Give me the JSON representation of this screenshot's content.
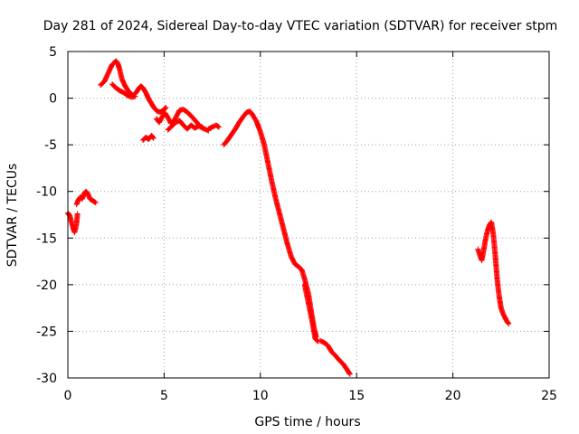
{
  "chart_data": {
    "type": "scatter",
    "title": "Day 281 of 2024, Sidereal Day-to-day VTEC variation (SDTVAR) for receiver stpm",
    "xlabel": "GPS time / hours",
    "ylabel": "SDTVAR / TECUs",
    "xlim": [
      0,
      25
    ],
    "ylim": [
      -30,
      5
    ],
    "xticks": [
      0,
      5,
      10,
      15,
      20,
      25
    ],
    "yticks": [
      5,
      0,
      -5,
      -10,
      -15,
      -20,
      -25,
      -30
    ],
    "grid": true,
    "marker": "+",
    "color": "#ff0000",
    "series": [
      {
        "name": "SDTVAR",
        "segments": [
          [
            [
              0.0,
              -12.3
            ],
            [
              0.1,
              -12.6
            ],
            [
              0.2,
              -13.4
            ],
            [
              0.3,
              -14.1
            ],
            [
              0.35,
              -14.4
            ],
            [
              0.45,
              -13.5
            ],
            [
              0.5,
              -12.4
            ]
          ],
          [
            [
              0.45,
              -11.4
            ],
            [
              0.55,
              -10.9
            ],
            [
              0.65,
              -10.6
            ],
            [
              0.75,
              -10.8
            ],
            [
              0.85,
              -10.2
            ],
            [
              0.95,
              -10.0
            ],
            [
              1.05,
              -10.3
            ],
            [
              1.15,
              -10.8
            ],
            [
              1.3,
              -11.0
            ],
            [
              1.45,
              -11.2
            ]
          ],
          [
            [
              1.7,
              1.4
            ],
            [
              1.9,
              1.8
            ],
            [
              2.1,
              2.7
            ],
            [
              2.3,
              3.6
            ],
            [
              2.5,
              4.0
            ],
            [
              2.6,
              3.7
            ],
            [
              2.7,
              3.0
            ],
            [
              2.8,
              2.1
            ],
            [
              2.95,
              1.4
            ],
            [
              3.1,
              0.9
            ],
            [
              3.25,
              0.5
            ],
            [
              3.4,
              0.3
            ],
            [
              3.55,
              0.6
            ],
            [
              3.7,
              1.1
            ],
            [
              3.8,
              1.3
            ],
            [
              3.9,
              1.1
            ],
            [
              4.05,
              0.6
            ],
            [
              4.2,
              -0.1
            ],
            [
              4.35,
              -0.6
            ],
            [
              4.5,
              -1.1
            ],
            [
              4.65,
              -1.4
            ],
            [
              4.8,
              -1.5
            ],
            [
              4.95,
              -1.3
            ],
            [
              5.1,
              -1.0
            ]
          ],
          [
            [
              2.3,
              1.5
            ],
            [
              2.5,
              1.1
            ],
            [
              2.7,
              0.8
            ],
            [
              2.9,
              0.6
            ],
            [
              3.1,
              0.3
            ],
            [
              3.3,
              0.1
            ],
            [
              3.5,
              0.2
            ]
          ],
          [
            [
              3.9,
              -4.5
            ],
            [
              4.05,
              -4.2
            ],
            [
              4.2,
              -4.4
            ],
            [
              4.35,
              -4.0
            ],
            [
              4.45,
              -4.3
            ]
          ],
          [
            [
              4.6,
              -2.2
            ],
            [
              4.75,
              -2.6
            ],
            [
              4.9,
              -2.0
            ],
            [
              5.05,
              -1.6
            ],
            [
              5.2,
              -2.1
            ],
            [
              5.35,
              -2.7
            ],
            [
              5.5,
              -2.5
            ],
            [
              5.65,
              -1.9
            ],
            [
              5.8,
              -1.3
            ],
            [
              6.0,
              -1.2
            ],
            [
              6.2,
              -1.5
            ],
            [
              6.45,
              -2.0
            ],
            [
              6.7,
              -2.6
            ],
            [
              6.9,
              -3.1
            ],
            [
              7.1,
              -3.3
            ],
            [
              7.3,
              -3.5
            ]
          ],
          [
            [
              5.2,
              -3.4
            ],
            [
              5.4,
              -3.0
            ],
            [
              5.6,
              -2.6
            ],
            [
              5.8,
              -2.4
            ],
            [
              6.0,
              -2.9
            ],
            [
              6.2,
              -3.3
            ],
            [
              6.4,
              -2.9
            ],
            [
              6.6,
              -3.2
            ],
            [
              6.8,
              -3.0
            ],
            [
              7.0,
              -3.1
            ]
          ],
          [
            [
              7.3,
              -3.3
            ],
            [
              7.5,
              -3.1
            ],
            [
              7.7,
              -2.9
            ],
            [
              7.85,
              -3.1
            ]
          ],
          [
            [
              8.1,
              -5.0
            ],
            [
              8.3,
              -4.5
            ],
            [
              8.5,
              -3.9
            ],
            [
              8.7,
              -3.3
            ],
            [
              8.9,
              -2.6
            ],
            [
              9.1,
              -2.0
            ],
            [
              9.3,
              -1.5
            ],
            [
              9.45,
              -1.4
            ],
            [
              9.6,
              -1.8
            ],
            [
              9.8,
              -2.5
            ],
            [
              10.0,
              -3.6
            ],
            [
              10.2,
              -5.0
            ],
            [
              10.4,
              -7.0
            ],
            [
              10.6,
              -9.0
            ],
            [
              10.8,
              -10.8
            ],
            [
              11.0,
              -12.4
            ],
            [
              11.2,
              -14.0
            ],
            [
              11.4,
              -15.6
            ],
            [
              11.6,
              -17.0
            ],
            [
              11.8,
              -17.8
            ],
            [
              12.0,
              -18.1
            ],
            [
              12.15,
              -18.4
            ],
            [
              12.3,
              -19.4
            ],
            [
              12.5,
              -21.0
            ],
            [
              12.65,
              -23.0
            ],
            [
              12.8,
              -24.8
            ],
            [
              12.9,
              -25.6
            ]
          ],
          [
            [
              12.3,
              -20.0
            ],
            [
              12.5,
              -22.0
            ],
            [
              12.7,
              -24.0
            ],
            [
              12.85,
              -25.8
            ],
            [
              13.0,
              -26.1
            ]
          ],
          [
            [
              13.1,
              -26.0
            ],
            [
              13.3,
              -26.2
            ],
            [
              13.5,
              -26.5
            ],
            [
              13.7,
              -27.2
            ],
            [
              13.9,
              -27.6
            ],
            [
              14.1,
              -28.1
            ],
            [
              14.3,
              -28.5
            ],
            [
              14.5,
              -29.1
            ],
            [
              14.65,
              -29.6
            ]
          ],
          [
            [
              21.3,
              -16.2
            ],
            [
              21.4,
              -16.8
            ],
            [
              21.5,
              -17.4
            ],
            [
              21.6,
              -16.3
            ],
            [
              21.7,
              -15.1
            ],
            [
              21.8,
              -14.2
            ],
            [
              21.9,
              -13.6
            ],
            [
              22.0,
              -13.3
            ],
            [
              22.1,
              -14.6
            ],
            [
              22.2,
              -16.8
            ],
            [
              22.3,
              -19.4
            ],
            [
              22.4,
              -21.2
            ],
            [
              22.5,
              -22.5
            ],
            [
              22.6,
              -23.1
            ],
            [
              22.7,
              -23.5
            ],
            [
              22.8,
              -23.9
            ],
            [
              22.9,
              -24.2
            ]
          ]
        ]
      }
    ]
  }
}
